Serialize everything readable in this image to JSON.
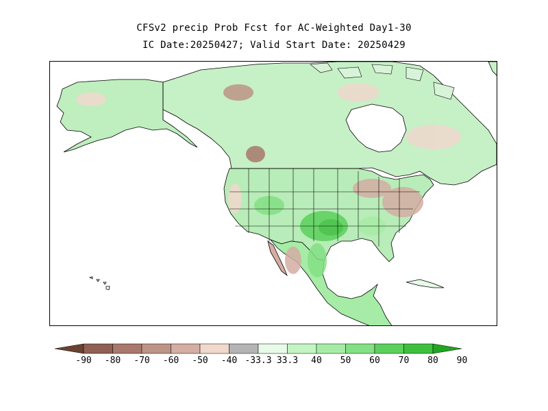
{
  "title_line1": "CFSv2 precip Prob Fcst for AC-Weighted Day1-30",
  "title_line2": "IC Date:20250427; Valid Start Date: 20250429",
  "legend": {
    "labels": [
      "-90",
      "-80",
      "-70",
      "-60",
      "-50",
      "-40",
      "-33.3",
      "33.3",
      "40",
      "50",
      "60",
      "70",
      "80",
      "90"
    ],
    "bins": [
      {
        "color": "#6b4130"
      },
      {
        "color": "#8e5f52"
      },
      {
        "color": "#a8796c"
      },
      {
        "color": "#bd9486"
      },
      {
        "color": "#d4ada3"
      },
      {
        "color": "#f0d8cc"
      },
      {
        "color": "#b4b4b4"
      },
      {
        "color": "#e8fae8"
      },
      {
        "color": "#c4f4c4"
      },
      {
        "color": "#a6eca6"
      },
      {
        "color": "#84e084"
      },
      {
        "color": "#5cd05c"
      },
      {
        "color": "#3ec03e"
      },
      {
        "color": "#1fa81f"
      }
    ]
  }
}
